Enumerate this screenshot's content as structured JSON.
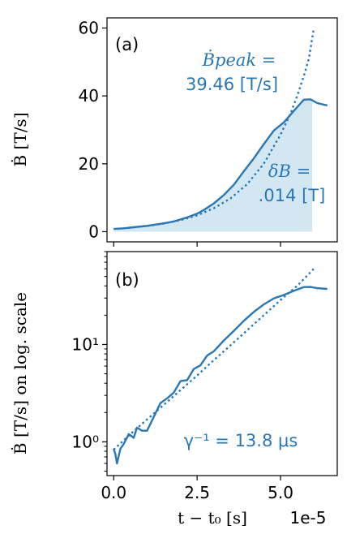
{
  "colors": {
    "series": "#2a77b4",
    "fill": "#d3e7f3",
    "text": "#000000"
  },
  "chart_data": [
    {
      "type": "line",
      "panel_label": "(a)",
      "ylabel": "Ḃ [T/s]",
      "ylim": [
        -3,
        63
      ],
      "xlim": [
        -0.2,
        6.7
      ],
      "yticks": [
        0,
        20,
        40,
        60
      ],
      "ytick_labels": [
        "0",
        "20",
        "40",
        "60"
      ],
      "series": [
        {
          "x": [
            0.0,
            0.3,
            0.6,
            1.0,
            1.4,
            1.8,
            2.2,
            2.5,
            2.7,
            3.0,
            3.3,
            3.6,
            3.9,
            4.2,
            4.5,
            4.8,
            5.1,
            5.4,
            5.7,
            5.9,
            6.1,
            6.4
          ],
          "y": [
            0.8,
            1.0,
            1.3,
            1.7,
            2.3,
            3.0,
            4.2,
            5.3,
            6.4,
            8.3,
            10.8,
            13.8,
            17.8,
            21.6,
            25.8,
            29.8,
            32.2,
            35.6,
            38.9,
            39.0,
            37.9,
            37.2
          ]
        },
        {
          "x": [
            0.3,
            1.0,
            1.5,
            2.0,
            2.5,
            3.0,
            3.5,
            4.0,
            4.5,
            5.0,
            5.3,
            5.5,
            5.7,
            5.85,
            6.0
          ],
          "y": [
            1.0,
            1.7,
            2.4,
            3.4,
            4.8,
            6.9,
            9.8,
            14.0,
            20.0,
            28.6,
            34.8,
            40.0,
            45.9,
            51.0,
            60.0
          ]
        }
      ],
      "shaded_region": {
        "x_end": 5.95,
        "top_series": 0
      },
      "annotations": [
        {
          "lines": [
            "Ḃpeak =",
            "39.46 [T/s]"
          ]
        },
        {
          "lines": [
            "δB =",
            ".014 [T]"
          ]
        }
      ]
    },
    {
      "type": "line",
      "panel_label": "(b)",
      "ylabel": "Ḃ [T/s] on log. scale",
      "yscale": "log",
      "ylim": [
        0.45,
        90
      ],
      "xlim": [
        -0.2,
        6.7
      ],
      "yticks": [
        1,
        10
      ],
      "ytick_labels": [
        "10⁰",
        "10¹"
      ],
      "xticks": [
        0.0,
        2.5,
        5.0
      ],
      "xtick_labels": [
        "0.0",
        "2.5",
        "5.0"
      ],
      "xlabel": "t − t₀ [s]",
      "x_offset_label": "1e-5",
      "series": [
        {
          "x": [
            0.0,
            0.05,
            0.1,
            0.2,
            0.3,
            0.45,
            0.6,
            0.7,
            0.85,
            1.0,
            1.2,
            1.4,
            1.6,
            1.8,
            2.0,
            2.2,
            2.4,
            2.6,
            2.8,
            3.0,
            3.3,
            3.6,
            3.9,
            4.2,
            4.5,
            4.8,
            5.1,
            5.4,
            5.7,
            5.9,
            6.1,
            6.4
          ],
          "y": [
            0.85,
            0.75,
            0.6,
            0.85,
            0.95,
            1.2,
            1.1,
            1.4,
            1.3,
            1.3,
            1.8,
            2.5,
            2.8,
            3.2,
            4.2,
            4.3,
            5.6,
            6.1,
            7.7,
            8.5,
            11.0,
            13.8,
            17.5,
            21.6,
            25.8,
            29.8,
            32.2,
            35.6,
            38.9,
            39.0,
            37.9,
            37.2
          ]
        },
        {
          "x": [
            0.0,
            0.5,
            1.0,
            1.5,
            2.0,
            2.5,
            3.0,
            3.5,
            4.0,
            4.5,
            5.0,
            5.5,
            6.0
          ],
          "y": [
            0.83,
            1.2,
            1.7,
            2.4,
            3.4,
            4.8,
            6.9,
            9.8,
            14.0,
            20.0,
            28.6,
            40.0,
            60.0
          ]
        }
      ],
      "annotations": [
        {
          "lines": [
            "γ⁻¹ = 13.8 μs"
          ]
        }
      ]
    }
  ]
}
